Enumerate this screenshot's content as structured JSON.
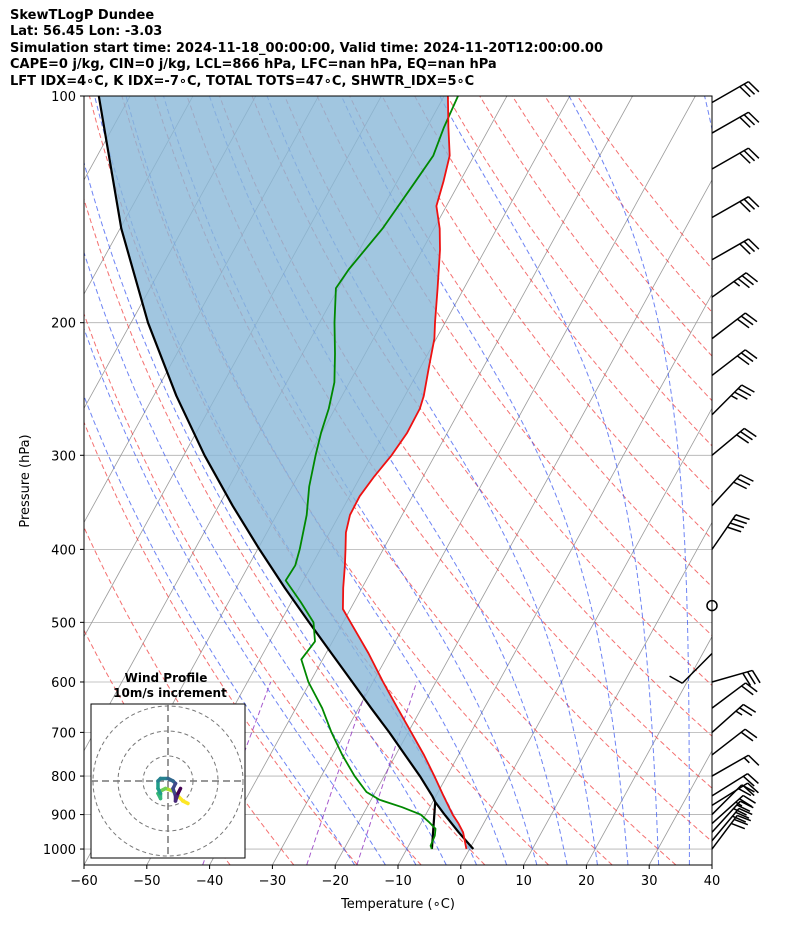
{
  "header": {
    "line1": "SkewTLogP Dundee",
    "line2": "Lat: 56.45   Lon: -3.03",
    "line3": "Simulation start time: 2024-11-18_00:00:00, Valid time: 2024-11-20T12:00:00.00",
    "line4": "CAPE=0 j/kg, CIN=0 j/kg, LCL=866 hPa, LFC=nan hPa, EQ=nan hPa",
    "line5": "LFT IDX=4∘C, K IDX=-7∘C, TOTAL TOTS=47∘C, SHWTR_IDX=5∘C"
  },
  "colors": {
    "temperature": "#ee1111",
    "dewpoint": "#008800",
    "parcel": "#000000",
    "cape_fill": "#8ab8d8",
    "dry_adiabat": "#f04040",
    "moist_adiabat": "#3050f0",
    "mixing_ratio": "#9030c0",
    "isotherm": "#9a9a9a"
  },
  "chart_data": {
    "type": "skewt",
    "xlabel": "Temperature (∘C)",
    "ylabel": "Pressure (hPa)",
    "xlim": [
      -60,
      40
    ],
    "ylim": [
      1050,
      100
    ],
    "x_ticks": [
      "−60",
      "−50",
      "−40",
      "−30",
      "−20",
      "−10",
      "0",
      "10",
      "20",
      "30",
      "40"
    ],
    "x_tick_values": [
      -60,
      -50,
      -40,
      -30,
      -20,
      -10,
      0,
      10,
      20,
      30,
      40
    ],
    "p_ticks": [
      "1000",
      "900",
      "800",
      "700",
      "600",
      "500",
      "400",
      "300",
      "200",
      "100"
    ],
    "p_tick_values": [
      1000,
      900,
      800,
      700,
      600,
      500,
      400,
      300,
      200,
      100
    ],
    "temperature": [
      {
        "p": 1000,
        "t": -0.5
      },
      {
        "p": 950,
        "t": -2.5
      },
      {
        "p": 925,
        "t": -4.0
      },
      {
        "p": 900,
        "t": -5.7
      },
      {
        "p": 850,
        "t": -8.8
      },
      {
        "p": 800,
        "t": -12.0
      },
      {
        "p": 750,
        "t": -15.5
      },
      {
        "p": 700,
        "t": -19.5
      },
      {
        "p": 650,
        "t": -23.8
      },
      {
        "p": 600,
        "t": -28.4
      },
      {
        "p": 550,
        "t": -33.2
      },
      {
        "p": 500,
        "t": -38.8
      },
      {
        "p": 480,
        "t": -41.2
      },
      {
        "p": 450,
        "t": -43.0
      },
      {
        "p": 420,
        "t": -44.7
      },
      {
        "p": 400,
        "t": -46.0
      },
      {
        "p": 380,
        "t": -47.4
      },
      {
        "p": 360,
        "t": -48.3
      },
      {
        "p": 340,
        "t": -48.4
      },
      {
        "p": 320,
        "t": -47.8
      },
      {
        "p": 300,
        "t": -46.9
      },
      {
        "p": 280,
        "t": -46.4
      },
      {
        "p": 260,
        "t": -46.5
      },
      {
        "p": 250,
        "t": -47.0
      },
      {
        "p": 230,
        "t": -48.6
      },
      {
        "p": 210,
        "t": -50.3
      },
      {
        "p": 200,
        "t": -51.6
      },
      {
        "p": 180,
        "t": -54.2
      },
      {
        "p": 160,
        "t": -57.2
      },
      {
        "p": 150,
        "t": -59.1
      },
      {
        "p": 140,
        "t": -61.6
      },
      {
        "p": 130,
        "t": -62.6
      },
      {
        "p": 120,
        "t": -63.9
      },
      {
        "p": 110,
        "t": -66.6
      },
      {
        "p": 100,
        "t": -69.4
      }
    ],
    "dewpoint": [
      {
        "p": 1000,
        "t": -6.0
      },
      {
        "p": 990,
        "t": -6.5
      },
      {
        "p": 960,
        "t": -6.7
      },
      {
        "p": 940,
        "t": -7.2
      },
      {
        "p": 920,
        "t": -8.9
      },
      {
        "p": 900,
        "t": -10.8
      },
      {
        "p": 880,
        "t": -14.4
      },
      {
        "p": 860,
        "t": -18.7
      },
      {
        "p": 840,
        "t": -21.4
      },
      {
        "p": 800,
        "t": -24.7
      },
      {
        "p": 750,
        "t": -28.5
      },
      {
        "p": 700,
        "t": -32.2
      },
      {
        "p": 650,
        "t": -35.8
      },
      {
        "p": 600,
        "t": -40.3
      },
      {
        "p": 560,
        "t": -43.4
      },
      {
        "p": 530,
        "t": -42.8
      },
      {
        "p": 500,
        "t": -44.7
      },
      {
        "p": 470,
        "t": -48.5
      },
      {
        "p": 440,
        "t": -52.8
      },
      {
        "p": 420,
        "t": -52.6
      },
      {
        "p": 400,
        "t": -53.3
      },
      {
        "p": 360,
        "t": -55.2
      },
      {
        "p": 330,
        "t": -57.3
      },
      {
        "p": 300,
        "t": -59.0
      },
      {
        "p": 280,
        "t": -60.1
      },
      {
        "p": 260,
        "t": -61.0
      },
      {
        "p": 240,
        "t": -62.4
      },
      {
        "p": 220,
        "t": -64.8
      },
      {
        "p": 200,
        "t": -67.6
      },
      {
        "p": 180,
        "t": -70.4
      },
      {
        "p": 170,
        "t": -70.0
      },
      {
        "p": 150,
        "t": -68.2
      },
      {
        "p": 130,
        "t": -67.1
      },
      {
        "p": 120,
        "t": -66.5
      },
      {
        "p": 110,
        "t": -67.3
      },
      {
        "p": 100,
        "t": -67.8
      }
    ],
    "parcel": [
      {
        "p": 1000,
        "t": 0.6
      },
      {
        "p": 950,
        "t": -3.2
      },
      {
        "p": 900,
        "t": -7.0
      },
      {
        "p": 866,
        "t": -9.6
      },
      {
        "p": 850,
        "t": -10.6
      },
      {
        "p": 800,
        "t": -14.3
      },
      {
        "p": 750,
        "t": -18.5
      },
      {
        "p": 700,
        "t": -23.0
      },
      {
        "p": 650,
        "t": -28.0
      },
      {
        "p": 600,
        "t": -33.3
      },
      {
        "p": 550,
        "t": -39.1
      },
      {
        "p": 500,
        "t": -45.4
      },
      {
        "p": 450,
        "t": -52.3
      },
      {
        "p": 400,
        "t": -59.7
      },
      {
        "p": 350,
        "t": -67.8
      },
      {
        "p": 300,
        "t": -76.7
      },
      {
        "p": 250,
        "t": -86.4
      },
      {
        "p": 200,
        "t": -97.3
      },
      {
        "p": 150,
        "t": -109.8
      },
      {
        "p": 100,
        "t": -125.0
      }
    ],
    "parcel_low": [
      {
        "p": 1000,
        "t": -6.0
      },
      {
        "p": 866,
        "t": -9.6
      }
    ],
    "wind_barbs": [
      {
        "p": 1000,
        "u": -9,
        "v": -12
      },
      {
        "p": 975,
        "u": -10,
        "v": -12
      },
      {
        "p": 950,
        "u": -10,
        "v": -11
      },
      {
        "p": 925,
        "u": -10,
        "v": -9
      },
      {
        "p": 900,
        "u": -8,
        "v": -8
      },
      {
        "p": 875,
        "u": -8,
        "v": -5
      },
      {
        "p": 850,
        "u": -8,
        "v": -5
      },
      {
        "p": 800,
        "u": -7,
        "v": -4
      },
      {
        "p": 750,
        "u": -9,
        "v": -7
      },
      {
        "p": 700,
        "u": -9,
        "v": -8
      },
      {
        "p": 650,
        "u": -8,
        "v": -6
      },
      {
        "p": 600,
        "u": -14,
        "v": -4
      },
      {
        "p": 550,
        "u": 4,
        "v": 4
      },
      {
        "p": 475,
        "u": 0,
        "v": 0
      },
      {
        "p": 400,
        "u": -11,
        "v": -16
      },
      {
        "p": 350,
        "u": -11,
        "v": -12
      },
      {
        "p": 300,
        "u": -12,
        "v": -10
      },
      {
        "p": 265,
        "u": -12,
        "v": -12
      },
      {
        "p": 235,
        "u": -13,
        "v": -10
      },
      {
        "p": 210,
        "u": -13,
        "v": -10
      },
      {
        "p": 185,
        "u": -14,
        "v": -10
      },
      {
        "p": 165,
        "u": -14,
        "v": -8
      },
      {
        "p": 145,
        "u": -14,
        "v": -8
      },
      {
        "p": 125,
        "u": -14,
        "v": -8
      },
      {
        "p": 112,
        "u": -14,
        "v": -8
      },
      {
        "p": 102,
        "u": -14,
        "v": -8
      }
    ],
    "hodograph": {
      "title_line1": "Wind Profile",
      "title_line2": "10m/s increment",
      "ring_step_ms": 10,
      "points": [
        {
          "u": 8,
          "v": -9
        },
        {
          "u": 6,
          "v": -8
        },
        {
          "u": 4,
          "v": -6
        },
        {
          "u": 2,
          "v": -4
        },
        {
          "u": -1,
          "v": -3
        },
        {
          "u": -3,
          "v": -4
        },
        {
          "u": -4,
          "v": -5
        },
        {
          "u": -3,
          "v": -7
        },
        {
          "u": -3,
          "v": -5
        },
        {
          "u": -4,
          "v": -3
        },
        {
          "u": -4,
          "v": 0
        },
        {
          "u": -3,
          "v": 1
        },
        {
          "u": 0,
          "v": 1
        },
        {
          "u": 2,
          "v": 0
        },
        {
          "u": 3,
          "v": -1
        },
        {
          "u": 2,
          "v": -3
        },
        {
          "u": 3,
          "v": -6
        },
        {
          "u": 3,
          "v": -8
        },
        {
          "u": 4,
          "v": -5
        },
        {
          "u": 5,
          "v": -3
        }
      ]
    }
  }
}
